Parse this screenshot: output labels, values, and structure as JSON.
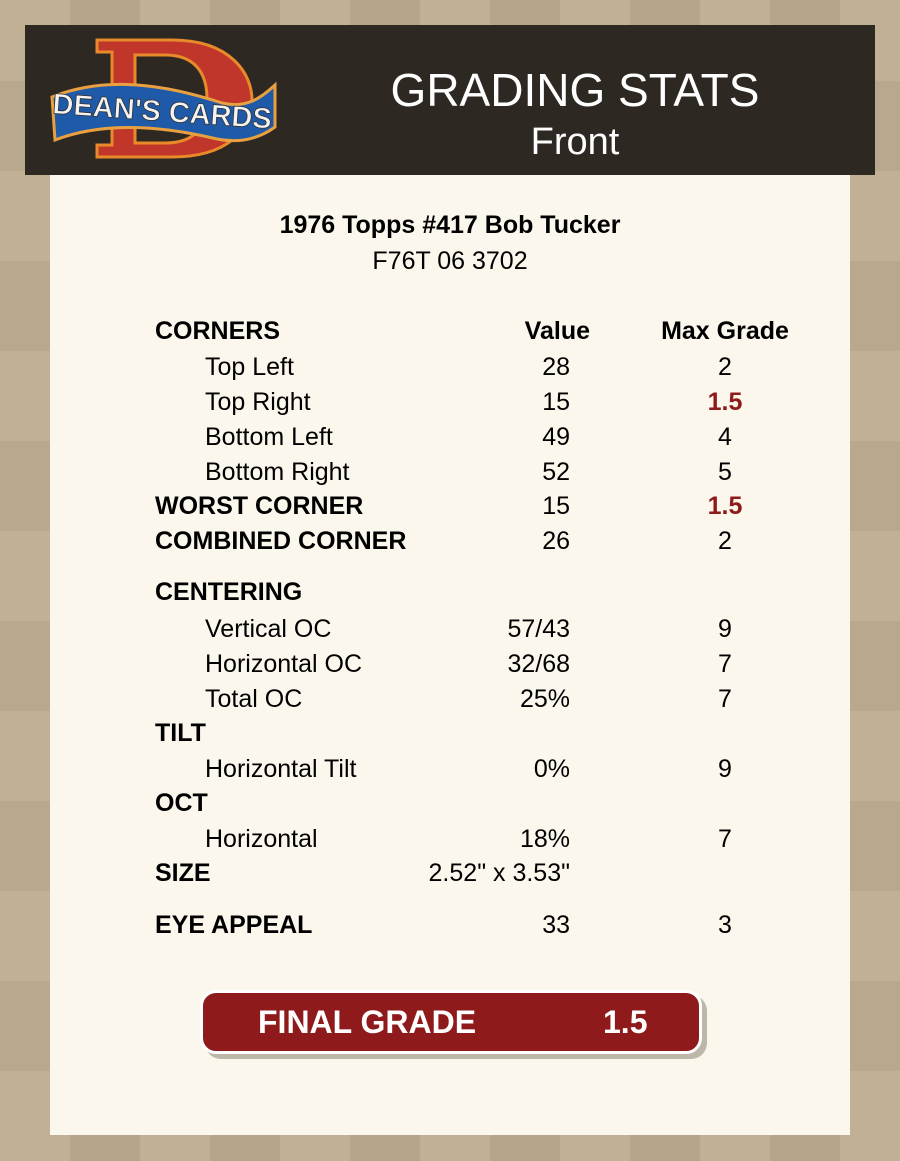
{
  "header": {
    "logo_text": "DEAN'S CARDS",
    "title": "GRADING STATS",
    "subtitle": "Front"
  },
  "card": {
    "name": "1976 Topps #417 Bob Tucker",
    "cert": "F76T 06 3702"
  },
  "columns": {
    "value": "Value",
    "max": "Max Grade"
  },
  "sections": {
    "corners": "CORNERS",
    "centering": "CENTERING",
    "tilt": "TILT",
    "oct": "OCT",
    "size": "SIZE",
    "eye": "EYE APPEAL"
  },
  "rows": {
    "top_left": {
      "label": "Top Left",
      "value": "28",
      "max": "2"
    },
    "top_right": {
      "label": "Top Right",
      "value": "15",
      "max": "1.5"
    },
    "bottom_left": {
      "label": "Bottom Left",
      "value": "49",
      "max": "4"
    },
    "bottom_right": {
      "label": "Bottom Right",
      "value": "52",
      "max": "5"
    },
    "worst_corner": {
      "label": "WORST CORNER",
      "value": "15",
      "max": "1.5"
    },
    "combined_corner": {
      "label": "COMBINED CORNER",
      "value": "26",
      "max": "2"
    },
    "vertical_oc": {
      "label": "Vertical OC",
      "value": "57/43",
      "max": "9"
    },
    "horizontal_oc": {
      "label": "Horizontal OC",
      "value": "32/68",
      "max": "7"
    },
    "total_oc": {
      "label": "Total OC",
      "value": "25%",
      "max": "7"
    },
    "horizontal_tilt": {
      "label": "Horizontal Tilt",
      "value": "0%",
      "max": "9"
    },
    "oct_horizontal": {
      "label": "Horizontal",
      "value": "18%",
      "max": "7"
    },
    "size": {
      "value": "2.52\" x 3.53\""
    },
    "eye_appeal": {
      "value": "33",
      "max": "3"
    }
  },
  "final": {
    "label": "FINAL GRADE",
    "value": "1.5"
  },
  "colors": {
    "header_bg": "#2e2822",
    "panel_bg": "#fcf7ec",
    "accent_red": "#8f1a1c",
    "low_grade_text": "#8d1b1b"
  }
}
